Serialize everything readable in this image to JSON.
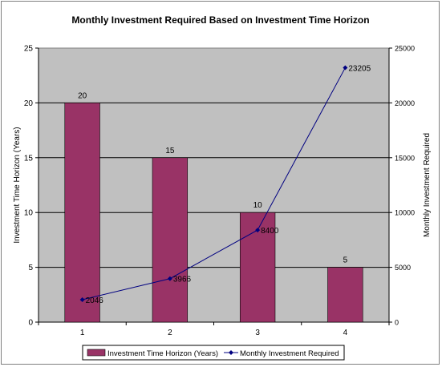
{
  "chart_data": {
    "type": "bar",
    "title": "Monthly Investment Required Based on Investment Time Horizon",
    "categories": [
      "1",
      "2",
      "3",
      "4"
    ],
    "ylabel_left": "Investment Time Horizon (Years)",
    "ylabel_right": "Monthly Investment Required",
    "ylim_left": [
      0,
      25
    ],
    "ylim_right": [
      0,
      25000
    ],
    "yticks_left": [
      "0",
      "5",
      "10",
      "15",
      "20",
      "25"
    ],
    "yticks_right": [
      "0",
      "5000",
      "10000",
      "15000",
      "20000",
      "25000"
    ],
    "grid": true,
    "legend_position": "bottom",
    "series": [
      {
        "name": "Investment Time Horizon (Years)",
        "type": "bar",
        "axis": "left",
        "color": "#993366",
        "values": [
          20,
          15,
          10,
          5
        ],
        "labels": [
          "20",
          "15",
          "10",
          "5"
        ]
      },
      {
        "name": "Monthly Investment Required",
        "type": "line",
        "axis": "right",
        "color": "#000080",
        "values": [
          2046,
          3966,
          8400,
          23205
        ],
        "labels": [
          "2046",
          "3966",
          "8400",
          "23205"
        ]
      }
    ]
  }
}
